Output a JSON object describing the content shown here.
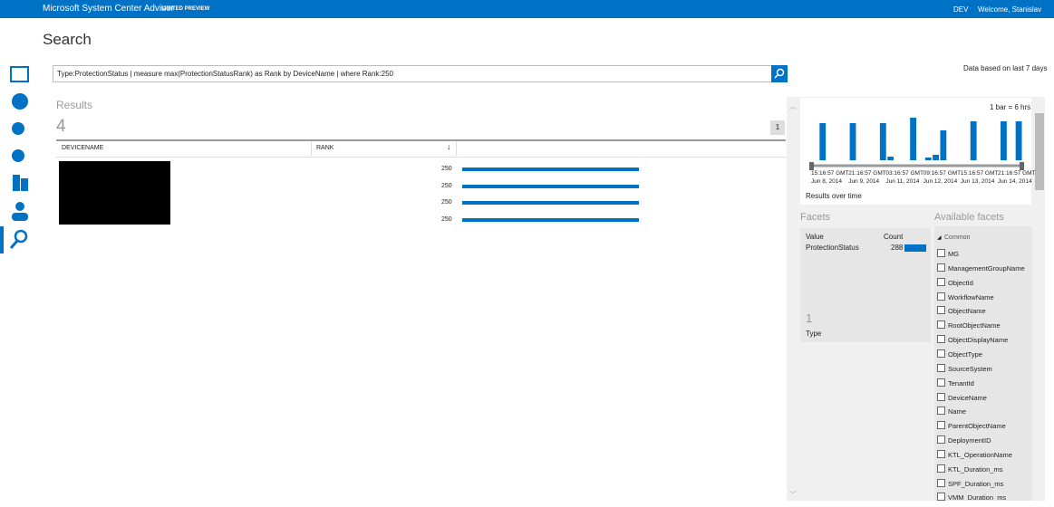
{
  "header": {
    "product": "Microsoft System Center Advisor",
    "badge": "LIMITED PREVIEW",
    "environment": "DEV",
    "welcome": "Welcome, Stanislav"
  },
  "page_title": "Search",
  "search": {
    "query": "Type:ProtectionStatus | measure max(ProtectionStatusRank) as Rank by DeviceName | where Rank:250",
    "data_note": "Data based on last 7 days"
  },
  "results": {
    "label": "Results",
    "count": 4,
    "page": 1,
    "columns": [
      "DEVICENAME",
      "RANK"
    ],
    "rows": [
      {
        "rank": 250
      },
      {
        "rank": 250
      },
      {
        "rank": 250
      },
      {
        "rank": 250
      }
    ]
  },
  "timeline": {
    "scale_label": "1 bar = 6 hrs",
    "caption": "Results over time",
    "bars": [
      0,
      41,
      0,
      0,
      0,
      41,
      0,
      0,
      0,
      41,
      4,
      0,
      0,
      47,
      0,
      3,
      6,
      33,
      0,
      0,
      0,
      43,
      0,
      0,
      0,
      43,
      0,
      43
    ],
    "ticks": [
      {
        "time": "15:16:57 GMT",
        "date": "Jun 8, 2014"
      },
      {
        "time": "21:16:57 GMT",
        "date": "Jun 9, 2014"
      },
      {
        "time": "03:16:57 GMT",
        "date": "Jun 11, 2014"
      },
      {
        "time": "09:16:57 GMT",
        "date": "Jun 12, 2014"
      },
      {
        "time": "15:16:57 GMT",
        "date": "Jun 13, 2014"
      },
      {
        "time": "21:16:57 GMT",
        "date": "Jun 14, 2014"
      }
    ]
  },
  "facets": {
    "title": "Facets",
    "value_header": "Value",
    "count_header": "Count",
    "items": [
      {
        "value": "ProtectionStatus",
        "count": 288
      }
    ],
    "type_count": 1,
    "type_label": "Type"
  },
  "available_facets": {
    "title": "Available facets",
    "group": "Common",
    "fields": [
      "MG",
      "ManagementGroupName",
      "ObjectId",
      "WorkflowName",
      "ObjectName",
      "RootObjectName",
      "ObjectDisplayName",
      "ObjectType",
      "SourceSystem",
      "TenantId",
      "DeviceName",
      "Name",
      "ParentObjectName",
      "DeploymentID",
      "KTL_OperationName",
      "KTL_Duration_ms",
      "SPF_Duration_ms",
      "VMM_Duration_ms"
    ]
  }
}
